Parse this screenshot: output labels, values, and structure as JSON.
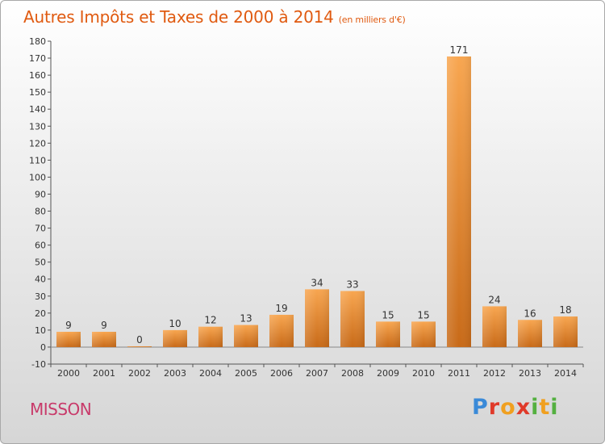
{
  "header": {
    "title": "Autres Impôts et Taxes de 2000 à 2014",
    "subtitle": "(en milliers d'€)"
  },
  "footer": {
    "commune": "MISSON",
    "logo_text": "Proxiti"
  },
  "colors": {
    "title": "#e05a10",
    "commune": "#c83a6a",
    "bar_light": "#f8a650",
    "bar_dark": "#c86a18"
  },
  "chart_data": {
    "type": "bar",
    "title": "Autres Impôts et Taxes de 2000 à 2014",
    "subtitle": "(en milliers d'€)",
    "xlabel": "",
    "ylabel": "",
    "categories": [
      "2000",
      "2001",
      "2002",
      "2003",
      "2004",
      "2005",
      "2006",
      "2007",
      "2008",
      "2009",
      "2010",
      "2011",
      "2012",
      "2013",
      "2014"
    ],
    "values": [
      9,
      9,
      0,
      10,
      12,
      13,
      19,
      34,
      33,
      15,
      15,
      171,
      24,
      16,
      18
    ],
    "ylim": [
      -10,
      180
    ],
    "yticks": [
      -10,
      0,
      10,
      20,
      30,
      40,
      50,
      60,
      70,
      80,
      90,
      100,
      110,
      120,
      130,
      140,
      150,
      160,
      170,
      180
    ],
    "grid": false
  }
}
